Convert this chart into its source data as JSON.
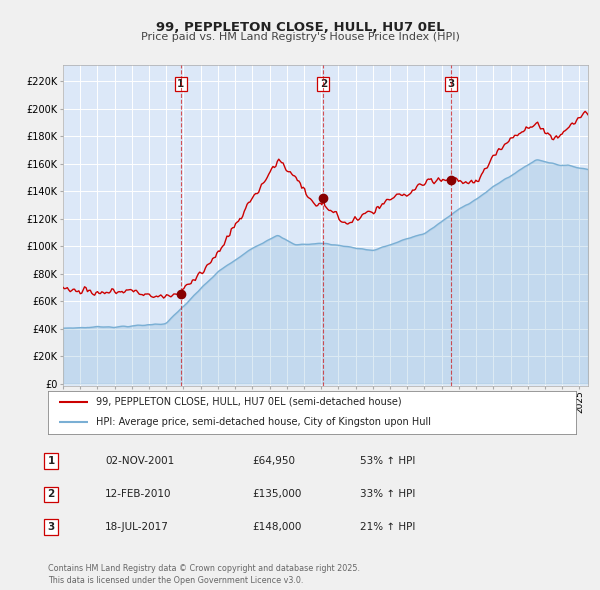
{
  "title": "99, PEPPLETON CLOSE, HULL, HU7 0EL",
  "subtitle": "Price paid vs. HM Land Registry's House Price Index (HPI)",
  "fig_bg_color": "#f0f0f0",
  "plot_bg_color": "#dce8f8",
  "grid_color": "#ffffff",
  "red_line_color": "#cc0000",
  "blue_line_color": "#7aafd4",
  "sale_marker_color": "#880000",
  "vline_color": "#cc0000",
  "ylabel_vals": [
    0,
    20000,
    40000,
    60000,
    80000,
    100000,
    120000,
    140000,
    160000,
    180000,
    200000,
    220000
  ],
  "ylabel_labels": [
    "£0",
    "£20K",
    "£40K",
    "£60K",
    "£80K",
    "£100K",
    "£120K",
    "£140K",
    "£160K",
    "£180K",
    "£200K",
    "£220K"
  ],
  "xmin": 1995.0,
  "xmax": 2025.5,
  "ymin": -2000,
  "ymax": 232000,
  "sale_dates": [
    2001.84,
    2010.12,
    2017.54
  ],
  "sale_prices": [
    64950,
    135000,
    148000
  ],
  "sale_labels": [
    "1",
    "2",
    "3"
  ],
  "legend_entries": [
    "99, PEPPLETON CLOSE, HULL, HU7 0EL (semi-detached house)",
    "HPI: Average price, semi-detached house, City of Kingston upon Hull"
  ],
  "table_rows": [
    [
      "1",
      "02-NOV-2001",
      "£64,950",
      "53% ↑ HPI"
    ],
    [
      "2",
      "12-FEB-2010",
      "£135,000",
      "33% ↑ HPI"
    ],
    [
      "3",
      "18-JUL-2017",
      "£148,000",
      "21% ↑ HPI"
    ]
  ],
  "footer": "Contains HM Land Registry data © Crown copyright and database right 2025.\nThis data is licensed under the Open Government Licence v3.0."
}
